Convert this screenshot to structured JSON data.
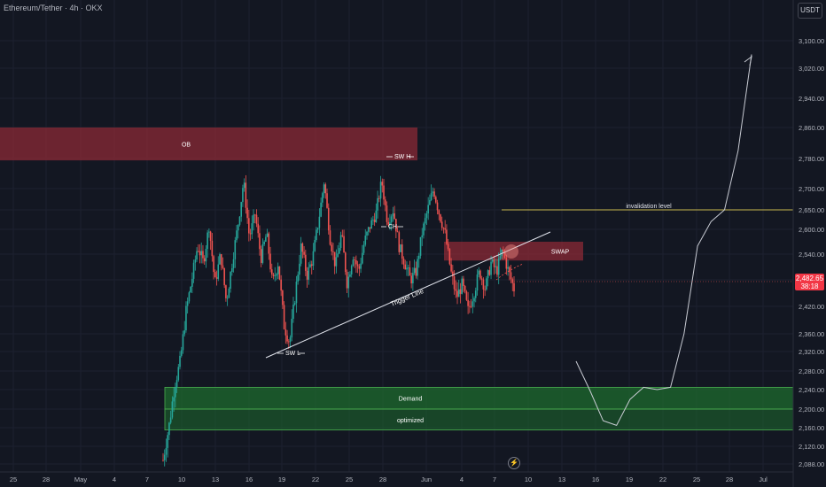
{
  "header": {
    "symbol_title": "Ethereum/Tether · 4h · OKX",
    "currency": "USDT"
  },
  "price_badge": {
    "price": "2,482.65",
    "countdown": "38:18"
  },
  "colors": {
    "background": "#131722",
    "up": "#26a69a",
    "down": "#ef5350",
    "zone_red": "#8b2a35",
    "zone_green": "#1e6b2e",
    "invalidation": "#c9b84f",
    "badge": "#f23645"
  },
  "icons": {
    "lightning": "lightning-icon"
  },
  "chart_data": {
    "type": "candlestick",
    "y_axis": {
      "ticks": [
        "3,100.00",
        "3,020.00",
        "2,940.00",
        "2,860.00",
        "2,780.00",
        "2,700.00",
        "2,650.00",
        "2,600.00",
        "2,540.00",
        "2,480.00",
        "2,420.00",
        "2,360.00",
        "2,320.00",
        "2,280.00",
        "2,240.00",
        "2,200.00",
        "2,160.00",
        "2,120.00",
        "2,088.00"
      ],
      "scale": "log"
    },
    "x_axis": {
      "ticks": [
        "25",
        "28",
        "May",
        "4",
        "7",
        "10",
        "13",
        "16",
        "19",
        "22",
        "25",
        "28",
        "Jun",
        "4",
        "7",
        "10",
        "13",
        "16",
        "19",
        "22",
        "25",
        "28",
        "Jul"
      ]
    },
    "price_path": [
      2095,
      2160,
      2250,
      2300,
      2410,
      2480,
      2560,
      2520,
      2610,
      2470,
      2540,
      2430,
      2520,
      2610,
      2720,
      2580,
      2640,
      2530,
      2590,
      2470,
      2520,
      2380,
      2340,
      2450,
      2560,
      2490,
      2530,
      2620,
      2720,
      2580,
      2510,
      2590,
      2470,
      2540,
      2500,
      2570,
      2610,
      2640,
      2720,
      2620,
      2650,
      2560,
      2520,
      2480,
      2500,
      2590,
      2650,
      2700,
      2640,
      2590,
      2500,
      2440,
      2470,
      2410,
      2450,
      2500,
      2460,
      2520,
      2500,
      2550,
      2500,
      2460
    ],
    "zones": [
      {
        "label": "OB",
        "from": 2775,
        "to": 2860
      },
      {
        "label": "SWAP",
        "from": 2525,
        "to": 2570
      },
      {
        "label": "Demand",
        "from": 2200,
        "to": 2245
      },
      {
        "label": "optimized",
        "from": 2155,
        "to": 2200
      }
    ],
    "annotations": [
      {
        "label": "SW H"
      },
      {
        "label": "CH"
      },
      {
        "label": "SW L"
      },
      {
        "label": "Trigger Line"
      },
      {
        "label": "invalidation level",
        "price": 2650
      }
    ],
    "projection_path": [
      [
        0,
        2300
      ],
      [
        1,
        2240
      ],
      [
        2,
        2175
      ],
      [
        3,
        2165
      ],
      [
        4,
        2220
      ],
      [
        5,
        2245
      ],
      [
        6,
        2240
      ],
      [
        7,
        2245
      ],
      [
        8,
        2360
      ],
      [
        9,
        2560
      ],
      [
        10,
        2620
      ],
      [
        11,
        2650
      ],
      [
        12,
        2800
      ],
      [
        13,
        3060
      ]
    ]
  }
}
